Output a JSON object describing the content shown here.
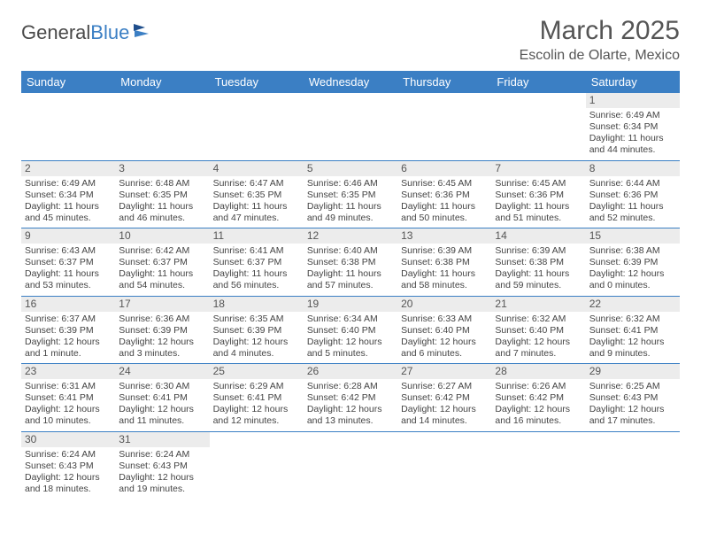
{
  "logo": {
    "text_a": "General",
    "text_b": "Blue"
  },
  "title": "March 2025",
  "location": "Escolin de Olarte, Mexico",
  "colors": {
    "header_bg": "#3b7fc4",
    "header_fg": "#ffffff",
    "border": "#3b7fc4",
    "daynum_bg": "#ececec",
    "text": "#444444"
  },
  "weekdays": [
    "Sunday",
    "Monday",
    "Tuesday",
    "Wednesday",
    "Thursday",
    "Friday",
    "Saturday"
  ],
  "weeks": [
    [
      null,
      null,
      null,
      null,
      null,
      null,
      {
        "d": "1",
        "sr": "6:49 AM",
        "ss": "6:34 PM",
        "dl": "11 hours and 44 minutes."
      }
    ],
    [
      {
        "d": "2",
        "sr": "6:49 AM",
        "ss": "6:34 PM",
        "dl": "11 hours and 45 minutes."
      },
      {
        "d": "3",
        "sr": "6:48 AM",
        "ss": "6:35 PM",
        "dl": "11 hours and 46 minutes."
      },
      {
        "d": "4",
        "sr": "6:47 AM",
        "ss": "6:35 PM",
        "dl": "11 hours and 47 minutes."
      },
      {
        "d": "5",
        "sr": "6:46 AM",
        "ss": "6:35 PM",
        "dl": "11 hours and 49 minutes."
      },
      {
        "d": "6",
        "sr": "6:45 AM",
        "ss": "6:36 PM",
        "dl": "11 hours and 50 minutes."
      },
      {
        "d": "7",
        "sr": "6:45 AM",
        "ss": "6:36 PM",
        "dl": "11 hours and 51 minutes."
      },
      {
        "d": "8",
        "sr": "6:44 AM",
        "ss": "6:36 PM",
        "dl": "11 hours and 52 minutes."
      }
    ],
    [
      {
        "d": "9",
        "sr": "6:43 AM",
        "ss": "6:37 PM",
        "dl": "11 hours and 53 minutes."
      },
      {
        "d": "10",
        "sr": "6:42 AM",
        "ss": "6:37 PM",
        "dl": "11 hours and 54 minutes."
      },
      {
        "d": "11",
        "sr": "6:41 AM",
        "ss": "6:37 PM",
        "dl": "11 hours and 56 minutes."
      },
      {
        "d": "12",
        "sr": "6:40 AM",
        "ss": "6:38 PM",
        "dl": "11 hours and 57 minutes."
      },
      {
        "d": "13",
        "sr": "6:39 AM",
        "ss": "6:38 PM",
        "dl": "11 hours and 58 minutes."
      },
      {
        "d": "14",
        "sr": "6:39 AM",
        "ss": "6:38 PM",
        "dl": "11 hours and 59 minutes."
      },
      {
        "d": "15",
        "sr": "6:38 AM",
        "ss": "6:39 PM",
        "dl": "12 hours and 0 minutes."
      }
    ],
    [
      {
        "d": "16",
        "sr": "6:37 AM",
        "ss": "6:39 PM",
        "dl": "12 hours and 1 minute."
      },
      {
        "d": "17",
        "sr": "6:36 AM",
        "ss": "6:39 PM",
        "dl": "12 hours and 3 minutes."
      },
      {
        "d": "18",
        "sr": "6:35 AM",
        "ss": "6:39 PM",
        "dl": "12 hours and 4 minutes."
      },
      {
        "d": "19",
        "sr": "6:34 AM",
        "ss": "6:40 PM",
        "dl": "12 hours and 5 minutes."
      },
      {
        "d": "20",
        "sr": "6:33 AM",
        "ss": "6:40 PM",
        "dl": "12 hours and 6 minutes."
      },
      {
        "d": "21",
        "sr": "6:32 AM",
        "ss": "6:40 PM",
        "dl": "12 hours and 7 minutes."
      },
      {
        "d": "22",
        "sr": "6:32 AM",
        "ss": "6:41 PM",
        "dl": "12 hours and 9 minutes."
      }
    ],
    [
      {
        "d": "23",
        "sr": "6:31 AM",
        "ss": "6:41 PM",
        "dl": "12 hours and 10 minutes."
      },
      {
        "d": "24",
        "sr": "6:30 AM",
        "ss": "6:41 PM",
        "dl": "12 hours and 11 minutes."
      },
      {
        "d": "25",
        "sr": "6:29 AM",
        "ss": "6:41 PM",
        "dl": "12 hours and 12 minutes."
      },
      {
        "d": "26",
        "sr": "6:28 AM",
        "ss": "6:42 PM",
        "dl": "12 hours and 13 minutes."
      },
      {
        "d": "27",
        "sr": "6:27 AM",
        "ss": "6:42 PM",
        "dl": "12 hours and 14 minutes."
      },
      {
        "d": "28",
        "sr": "6:26 AM",
        "ss": "6:42 PM",
        "dl": "12 hours and 16 minutes."
      },
      {
        "d": "29",
        "sr": "6:25 AM",
        "ss": "6:43 PM",
        "dl": "12 hours and 17 minutes."
      }
    ],
    [
      {
        "d": "30",
        "sr": "6:24 AM",
        "ss": "6:43 PM",
        "dl": "12 hours and 18 minutes."
      },
      {
        "d": "31",
        "sr": "6:24 AM",
        "ss": "6:43 PM",
        "dl": "12 hours and 19 minutes."
      },
      null,
      null,
      null,
      null,
      null
    ]
  ],
  "labels": {
    "sunrise": "Sunrise: ",
    "sunset": "Sunset: ",
    "daylight": "Daylight: "
  }
}
